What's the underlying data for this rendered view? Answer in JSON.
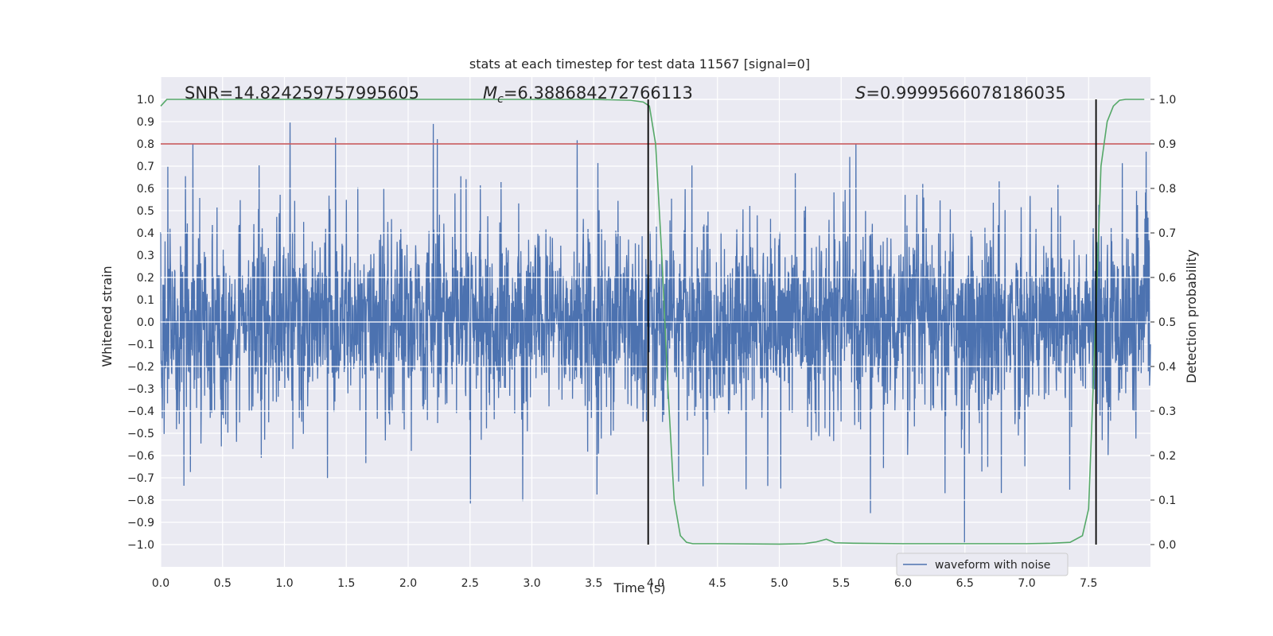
{
  "chart_data": {
    "type": "line",
    "title": "stats at each timestep for test data 11567 [signal=0]",
    "xlabel": "Time (s)",
    "ylabel": "Whitened strain",
    "y2label": "Detection probability",
    "xlim": [
      0.0,
      8.0
    ],
    "ylim": [
      -1.1,
      1.1
    ],
    "y2lim": [
      -0.05,
      1.05
    ],
    "xticks": [
      "0.0",
      "0.5",
      "1.0",
      "1.5",
      "2.0",
      "2.5",
      "3.0",
      "3.5",
      "4.0",
      "4.5",
      "5.0",
      "5.5",
      "6.0",
      "6.5",
      "7.0",
      "7.5"
    ],
    "yticks": [
      "1.0",
      "0.9",
      "0.8",
      "0.7",
      "0.6",
      "0.5",
      "0.4",
      "0.3",
      "0.2",
      "0.1",
      "0.0",
      "-0.1",
      "-0.2",
      "-0.3",
      "-0.4",
      "-0.5",
      "-0.6",
      "-0.7",
      "-0.8",
      "-0.9",
      "-1.0"
    ],
    "y2ticks": [
      "1.0",
      "0.9",
      "0.8",
      "0.7",
      "0.6",
      "0.5",
      "0.4",
      "0.3",
      "0.2",
      "0.1",
      "0.0"
    ],
    "grid": true,
    "annotations": {
      "snr_text": "SNR=14.824259757995605",
      "mc_prefix": "M",
      "mc_sub": "c",
      "mc_value": "=6.388684272766113",
      "s_prefix": "S",
      "s_value": "=0.9999566078186035"
    },
    "threshold_y2": 0.9,
    "vertical_lines_x": [
      3.94,
      7.56
    ],
    "series": [
      {
        "name": "waveform with noise",
        "axis": "left",
        "color": "#4c72b0",
        "x_start": 0.0,
        "x_end": 8.0,
        "envelope_description": "dense noise spanning roughly -0.5 to 0.55 with spikes to about +0.92 and -0.99",
        "noise_seed": 11567
      },
      {
        "name": "detection probability",
        "axis": "right",
        "color": "#55a868",
        "x": [
          0.0,
          0.05,
          0.1,
          0.5,
          1.0,
          1.5,
          2.0,
          2.5,
          3.0,
          3.5,
          3.8,
          3.9,
          3.95,
          4.0,
          4.05,
          4.1,
          4.15,
          4.2,
          4.25,
          4.3,
          4.4,
          4.5,
          5.0,
          5.2,
          5.3,
          5.38,
          5.45,
          5.6,
          6.0,
          6.5,
          7.0,
          7.2,
          7.35,
          7.45,
          7.5,
          7.55,
          7.6,
          7.65,
          7.7,
          7.75,
          7.8,
          7.95
        ],
        "values": [
          0.985,
          1.0,
          1.0,
          1.0,
          1.0,
          1.0,
          1.0,
          1.0,
          1.0,
          1.0,
          0.998,
          0.994,
          0.985,
          0.9,
          0.65,
          0.35,
          0.1,
          0.02,
          0.005,
          0.002,
          0.002,
          0.002,
          0.001,
          0.002,
          0.006,
          0.012,
          0.004,
          0.003,
          0.002,
          0.002,
          0.002,
          0.003,
          0.005,
          0.02,
          0.08,
          0.45,
          0.85,
          0.95,
          0.985,
          0.998,
          1.0,
          1.0
        ]
      }
    ],
    "legend": {
      "entries": [
        "waveform with noise"
      ],
      "placement": "lower-right"
    },
    "colors": {
      "background": "#eaeaf2",
      "grid": "#ffffff",
      "threshold": "#c44e52",
      "vline": "#000000",
      "text": "#262626"
    }
  }
}
